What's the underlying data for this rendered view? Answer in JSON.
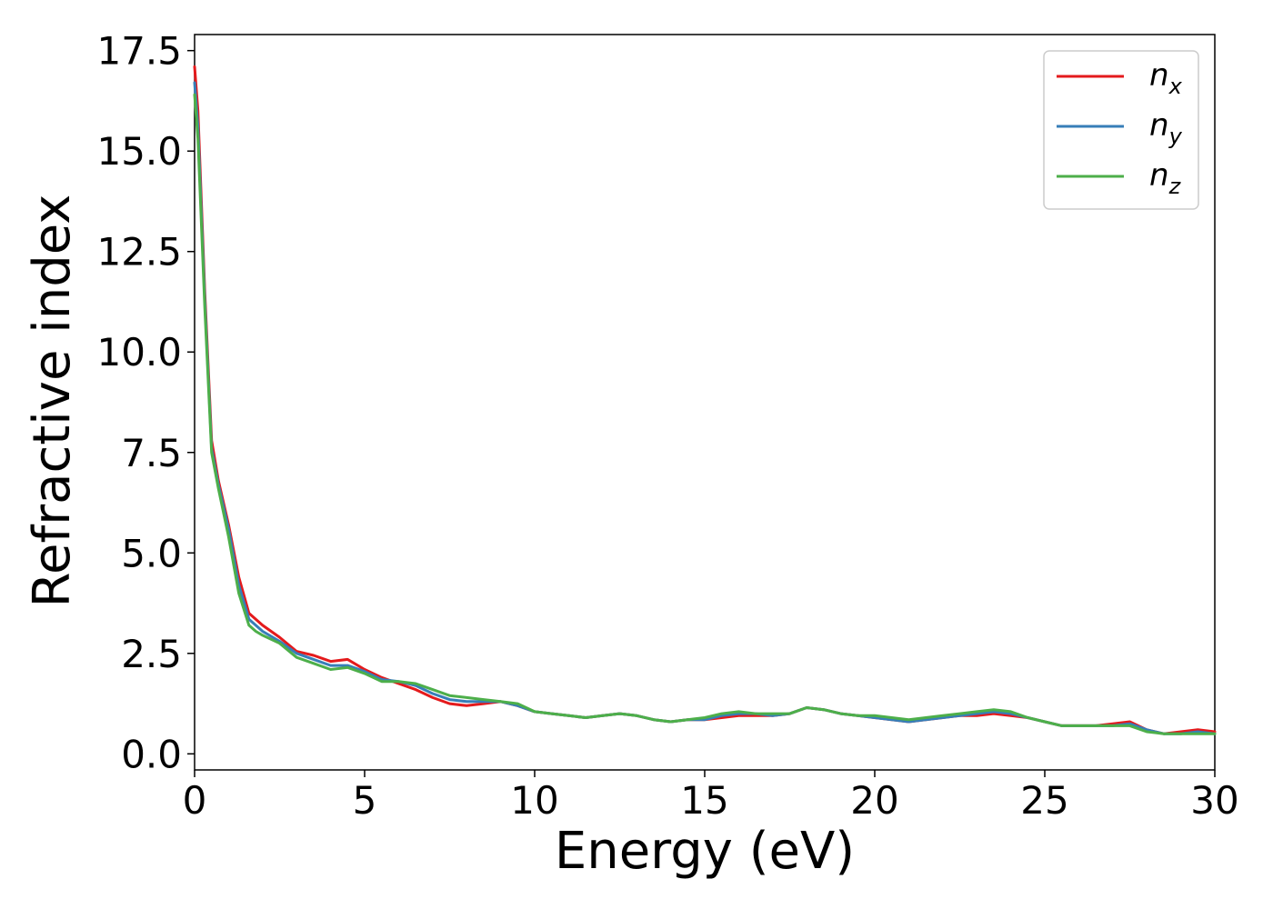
{
  "chart_data": {
    "type": "line",
    "xlabel": "Energy (eV)",
    "ylabel": "Refractive index",
    "xlim": [
      0,
      30
    ],
    "ylim": [
      -0.4,
      17.9
    ],
    "xticks": [
      0,
      5,
      10,
      15,
      20,
      25,
      30
    ],
    "xtick_labels": [
      "0",
      "5",
      "10",
      "15",
      "20",
      "25",
      "30"
    ],
    "yticks": [
      0.0,
      2.5,
      5.0,
      7.5,
      10.0,
      12.5,
      15.0,
      17.5
    ],
    "ytick_labels": [
      "0.0",
      "2.5",
      "5.0",
      "7.5",
      "10.0",
      "12.5",
      "15.0",
      "17.5"
    ],
    "grid": false,
    "legend_position": "top-right",
    "series": [
      {
        "name": "n_x",
        "label_base": "n",
        "label_sub": "x",
        "color": "#e41a1c",
        "x": [
          0,
          0.1,
          0.3,
          0.5,
          0.7,
          1.0,
          1.3,
          1.6,
          1.8,
          2.0,
          2.5,
          3.0,
          3.5,
          4.0,
          4.5,
          5.0,
          5.5,
          6.0,
          6.5,
          7.0,
          7.5,
          8.0,
          8.5,
          9.0,
          9.5,
          10.0,
          10.5,
          11.0,
          11.5,
          12.0,
          12.5,
          13.0,
          13.5,
          14.0,
          14.5,
          15.0,
          15.5,
          16.0,
          16.5,
          17.0,
          17.5,
          18.0,
          18.5,
          19.0,
          19.5,
          20.0,
          20.5,
          21.0,
          21.5,
          22.0,
          22.5,
          23.0,
          23.5,
          24.0,
          24.5,
          25.0,
          25.5,
          26.0,
          26.5,
          27.0,
          27.5,
          28.0,
          28.5,
          29.0,
          29.5,
          30.0
        ],
        "y": [
          17.1,
          16.0,
          11.5,
          7.8,
          6.8,
          5.7,
          4.4,
          3.5,
          3.35,
          3.2,
          2.9,
          2.55,
          2.45,
          2.3,
          2.35,
          2.1,
          1.9,
          1.75,
          1.6,
          1.4,
          1.25,
          1.2,
          1.25,
          1.3,
          1.2,
          1.05,
          1.0,
          0.95,
          0.9,
          0.95,
          1.0,
          0.95,
          0.85,
          0.8,
          0.85,
          0.85,
          0.9,
          0.95,
          0.95,
          0.95,
          1.0,
          1.15,
          1.1,
          1.0,
          0.95,
          0.9,
          0.85,
          0.8,
          0.85,
          0.9,
          0.95,
          0.95,
          1.0,
          0.95,
          0.9,
          0.8,
          0.7,
          0.7,
          0.7,
          0.75,
          0.8,
          0.6,
          0.5,
          0.55,
          0.6,
          0.55
        ]
      },
      {
        "name": "n_y",
        "label_base": "n",
        "label_sub": "y",
        "color": "#377eb8",
        "x": [
          0,
          0.1,
          0.3,
          0.5,
          0.7,
          1.0,
          1.3,
          1.6,
          1.8,
          2.0,
          2.5,
          3.0,
          3.5,
          4.0,
          4.5,
          5.0,
          5.5,
          6.0,
          6.5,
          7.0,
          7.5,
          8.0,
          8.5,
          9.0,
          9.5,
          10.0,
          10.5,
          11.0,
          11.5,
          12.0,
          12.5,
          13.0,
          13.5,
          14.0,
          14.5,
          15.0,
          15.5,
          16.0,
          16.5,
          17.0,
          17.5,
          18.0,
          18.5,
          19.0,
          19.5,
          20.0,
          20.5,
          21.0,
          21.5,
          22.0,
          22.5,
          23.0,
          23.5,
          24.0,
          24.5,
          25.0,
          25.5,
          26.0,
          26.5,
          27.0,
          27.5,
          28.0,
          28.5,
          29.0,
          29.5,
          30.0
        ],
        "y": [
          16.7,
          15.6,
          11.3,
          7.6,
          6.7,
          5.6,
          4.2,
          3.35,
          3.2,
          3.05,
          2.8,
          2.5,
          2.35,
          2.2,
          2.2,
          2.05,
          1.85,
          1.8,
          1.7,
          1.5,
          1.35,
          1.3,
          1.3,
          1.3,
          1.2,
          1.05,
          1.0,
          0.95,
          0.9,
          0.95,
          1.0,
          0.95,
          0.85,
          0.8,
          0.85,
          0.85,
          0.95,
          1.0,
          1.0,
          0.95,
          1.0,
          1.15,
          1.1,
          1.0,
          0.95,
          0.9,
          0.85,
          0.8,
          0.85,
          0.9,
          0.95,
          1.0,
          1.05,
          1.0,
          0.9,
          0.8,
          0.7,
          0.7,
          0.7,
          0.7,
          0.75,
          0.6,
          0.5,
          0.5,
          0.55,
          0.5
        ]
      },
      {
        "name": "n_z",
        "label_base": "n",
        "label_sub": "z",
        "color": "#4daf4a",
        "x": [
          0,
          0.1,
          0.3,
          0.5,
          0.7,
          1.0,
          1.3,
          1.6,
          1.8,
          2.0,
          2.5,
          3.0,
          3.5,
          4.0,
          4.5,
          5.0,
          5.5,
          6.0,
          6.5,
          7.0,
          7.5,
          8.0,
          8.5,
          9.0,
          9.5,
          10.0,
          10.5,
          11.0,
          11.5,
          12.0,
          12.5,
          13.0,
          13.5,
          14.0,
          14.5,
          15.0,
          15.5,
          16.0,
          16.5,
          17.0,
          17.5,
          18.0,
          18.5,
          19.0,
          19.5,
          20.0,
          20.5,
          21.0,
          21.5,
          22.0,
          22.5,
          23.0,
          23.5,
          24.0,
          24.5,
          25.0,
          25.5,
          26.0,
          26.5,
          27.0,
          27.5,
          28.0,
          28.5,
          29.0,
          29.5,
          30.0
        ],
        "y": [
          16.4,
          15.3,
          11.1,
          7.5,
          6.6,
          5.4,
          4.0,
          3.2,
          3.05,
          2.95,
          2.75,
          2.4,
          2.25,
          2.1,
          2.15,
          2.0,
          1.8,
          1.8,
          1.75,
          1.6,
          1.45,
          1.4,
          1.35,
          1.3,
          1.25,
          1.05,
          1.0,
          0.95,
          0.9,
          0.95,
          1.0,
          0.95,
          0.85,
          0.8,
          0.85,
          0.9,
          1.0,
          1.05,
          1.0,
          1.0,
          1.0,
          1.15,
          1.1,
          1.0,
          0.95,
          0.95,
          0.9,
          0.85,
          0.9,
          0.95,
          1.0,
          1.05,
          1.1,
          1.05,
          0.9,
          0.8,
          0.7,
          0.7,
          0.7,
          0.7,
          0.7,
          0.55,
          0.5,
          0.5,
          0.5,
          0.5
        ]
      }
    ]
  }
}
